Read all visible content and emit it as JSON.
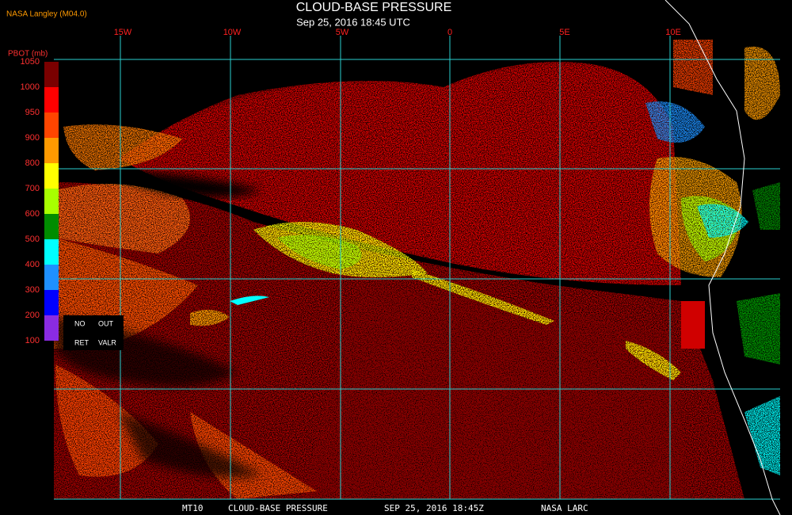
{
  "header": {
    "source": "NASA Langley (M04.0)",
    "title": "CLOUD-BASE PRESSURE",
    "subtitle": "Sep 25, 2016 18:45 UTC"
  },
  "colorbar": {
    "title": "PBOT (mb)",
    "labels": [
      "1050",
      "1000",
      "950",
      "900",
      "800",
      "700",
      "600",
      "500",
      "400",
      "300",
      "200",
      "100"
    ],
    "colors": [
      "#7a0000",
      "#ff0000",
      "#ff4500",
      "#ff9a00",
      "#ffff00",
      "#a8ff00",
      "#008c00",
      "#00ffff",
      "#1e90ff",
      "#0000ff",
      "#8a2be2"
    ],
    "notes": [
      "NO",
      "OUT",
      "RET",
      "VALR"
    ]
  },
  "map": {
    "longitude_labels": [
      "15W",
      "10W",
      "5W",
      "0",
      "5E",
      "10E"
    ]
  },
  "footer": {
    "segments": [
      "MT10",
      "CLOUD-BASE PRESSURE",
      "SEP 25, 2016 18:45Z",
      "NASA LARC"
    ]
  }
}
